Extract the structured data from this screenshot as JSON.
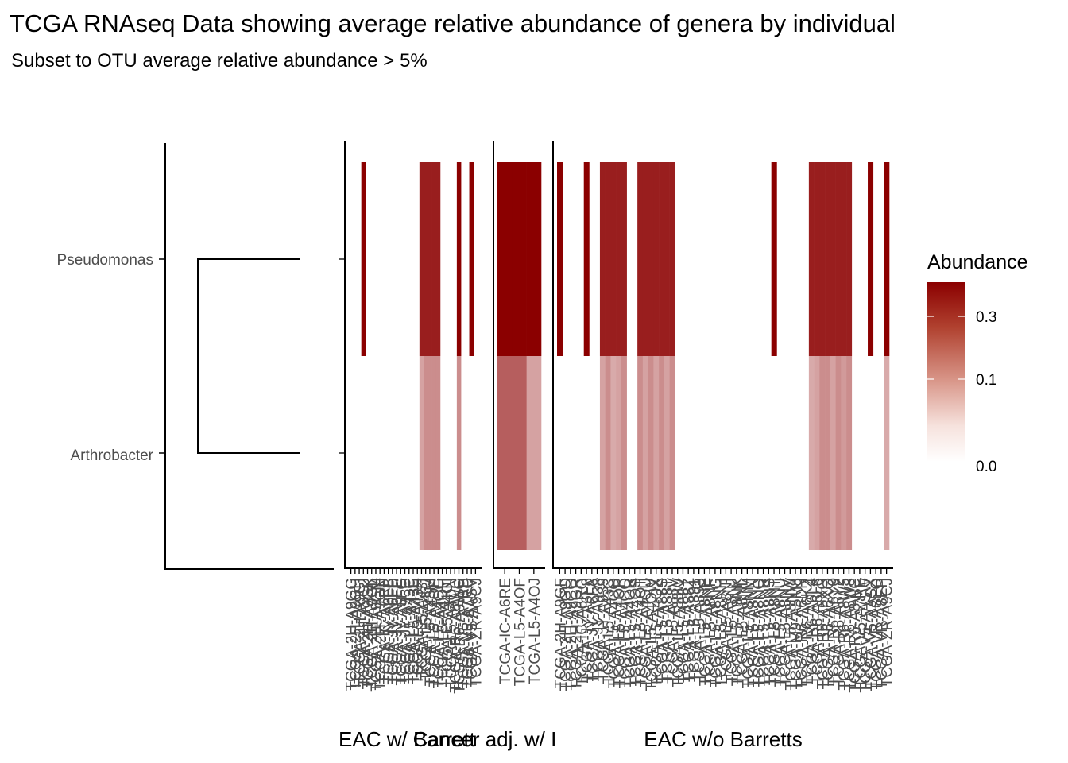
{
  "chart_data": {
    "type": "heatmap",
    "title": "TCGA RNAseq Data showing average relative abundance of genera by individual",
    "subtitle": "Subset to OTU average relative abundance > 5%",
    "genera": [
      "Pseudomonas",
      "Arthrobacter"
    ],
    "legend": {
      "title": "Abundance",
      "breaks": [
        0.3,
        0.1,
        0.0
      ],
      "break_labels": [
        "0.3",
        "0.1",
        "0.0"
      ],
      "low_color": "#ffffff",
      "high_color": "#8b0000",
      "max": 0.45,
      "position": "right"
    },
    "colors": {
      "high": "#8b0000",
      "low": "#ffffff",
      "axis": "#000000",
      "tick_text": "#4d4d4d"
    },
    "facets": [
      {
        "label": "EAC w/ Barrett",
        "samples": [
          "TCGA-2H-A9GG",
          "TCGA-2H-A9GH",
          "TCGA-2H-A9GI",
          "TCGA-2H-A9GJ",
          "TCGA-2H-A9GK",
          "TCGA-2H-A9GL",
          "TCGA-2H-A9GM",
          "TCGA-2H-A9GN",
          "TCGA-IC-A6RF",
          "TCGA-JY-A6FB",
          "TCGA-JY-A6FD",
          "TCGA-JY-A6FE",
          "TCGA-JY-A6FG",
          "TCGA-JY-A93C",
          "TCGA-L5-A43C",
          "TCGA-L5-A43E",
          "TCGA-L5-A43H",
          "TCGA-L5-A43I",
          "TCGA-L5-A43J",
          "TCGA-L5-A43M",
          "TCGA-L5-A4OE",
          "TCGA-L5-A4OG",
          "TCGA-L5-A4OH",
          "TCGA-L5-A4OI",
          "TCGA-L5-A4ON",
          "TCGA-R6-A8WC",
          "TCGA-R6-A8WG",
          "TCGA-V5-A7RB",
          "TCGA-V5-A7RC",
          "TCGA-V5-AASV",
          "TCGA-ZR-A9CJ"
        ],
        "pseudomonas": [
          0,
          0,
          0,
          0.45,
          0,
          0,
          0,
          0,
          0,
          0,
          0,
          0,
          0,
          0,
          0,
          0,
          0,
          0.35,
          0.35,
          0.35,
          0.35,
          0.35,
          0,
          0,
          0,
          0,
          0.45,
          0,
          0,
          0.45,
          0
        ],
        "arthrobacter": [
          0,
          0,
          0,
          0,
          0,
          0,
          0,
          0,
          0,
          0,
          0,
          0,
          0,
          0,
          0,
          0,
          0,
          0.06,
          0.09,
          0.09,
          0.09,
          0.09,
          0,
          0,
          0,
          0,
          0.09,
          0,
          0,
          0,
          0
        ]
      },
      {
        "label": "Cancer adj. w/ Barrett",
        "display_label": "Cancer adj. w/ I",
        "samples": [
          "TCGA-IC-A6RE",
          "TCGA-L5-A4OF",
          "TCGA-L5-A4OJ"
        ],
        "pseudomonas": [
          0.45,
          0.45,
          0.45
        ],
        "arthrobacter": [
          0.18,
          0.18,
          0.06
        ]
      },
      {
        "label": "EAC w/o Barretts",
        "samples": [
          "TCGA-2H-A9GF",
          "TCGA-2H-A9GO",
          "TCGA-2H-A9GQ",
          "TCGA-2H-A9GR",
          "TCGA-IC-A6RG",
          "TCGA-JY-A6F8",
          "TCGA-JY-A6FA",
          "TCGA-JY-A938",
          "TCGA-JY-A939",
          "TCGA-L5-A43C",
          "TCGA-L5-A4OO",
          "TCGA-L5-A4OP",
          "TCGA-L5-A4OQ",
          "TCGA-L5-A4OR",
          "TCGA-L5-A4OS",
          "TCGA-L5-A4OT",
          "TCGA-L5-A4OU",
          "TCGA-L5-A4OW",
          "TCGA-L5-A4OX",
          "TCGA-L5-A88S",
          "TCGA-L5-A88T",
          "TCGA-L5-A88V",
          "TCGA-L5-A88W",
          "TCGA-L5-A88Y",
          "TCGA-L5-A88Z",
          "TCGA-L5-A891",
          "TCGA-L5-A893",
          "TCGA-L5-A8NE",
          "TCGA-L5-A8NF",
          "TCGA-L5-A8NG",
          "TCGA-L5-A8NH",
          "TCGA-L5-A8NI",
          "TCGA-L5-A8NJ",
          "TCGA-L5-A8NK",
          "TCGA-L5-A8NL",
          "TCGA-L5-A8NM",
          "TCGA-L5-A8NN",
          "TCGA-L5-A8NQ",
          "TCGA-L5-A8NR",
          "TCGA-L5-A8NS",
          "TCGA-L5-A8NT",
          "TCGA-L5-A8NU",
          "TCGA-L5-A8NV",
          "TCGA-L5-A8NW",
          "TCGA-M9-A5M8",
          "TCGA-R6-A6DN",
          "TCGA-R6-A6KZ",
          "TCGA-R6-A6L4",
          "TCGA-R6-A6L6",
          "TCGA-R6-A6XG",
          "TCGA-R6-A6XQ",
          "TCGA-R6-A6Y0",
          "TCGA-R6-A6Y2",
          "TCGA-R6-A8W5",
          "TCGA-R6-A8W8",
          "TCGA-R6-A8WC",
          "TCGA-V5-A7RE",
          "TCGA-V5-AASW",
          "TCGA-V5-AASX",
          "TCGA-VR-A8EO",
          "TCGA-VR-A8EP",
          "TCGA-ZR-A9CJ"
        ],
        "pseudomonas": [
          0.45,
          0,
          0,
          0,
          0,
          0.45,
          0,
          0,
          0.35,
          0.35,
          0.35,
          0.35,
          0.35,
          0,
          0,
          0.35,
          0.35,
          0.35,
          0.35,
          0.35,
          0.35,
          0.35,
          0,
          0,
          0,
          0,
          0,
          0,
          0,
          0,
          0,
          0,
          0,
          0,
          0,
          0,
          0,
          0,
          0,
          0,
          0.45,
          0,
          0,
          0,
          0,
          0,
          0,
          0.35,
          0.35,
          0.35,
          0.35,
          0.35,
          0.35,
          0.35,
          0.35,
          0,
          0,
          0,
          0.45,
          0,
          0,
          0.45
        ],
        "arthrobacter": [
          0,
          0,
          0,
          0,
          0,
          0,
          0,
          0,
          0.06,
          0.09,
          0.05,
          0.06,
          0.09,
          0,
          0,
          0.09,
          0.06,
          0.09,
          0.06,
          0.09,
          0.06,
          0.09,
          0,
          0,
          0,
          0,
          0,
          0,
          0,
          0,
          0,
          0,
          0,
          0,
          0,
          0,
          0,
          0,
          0,
          0,
          0,
          0,
          0,
          0,
          0,
          0,
          0,
          0.05,
          0.06,
          0.09,
          0.09,
          0.06,
          0.09,
          0.07,
          0.09,
          0,
          0,
          0,
          0,
          0,
          0,
          0.05
        ]
      }
    ]
  }
}
